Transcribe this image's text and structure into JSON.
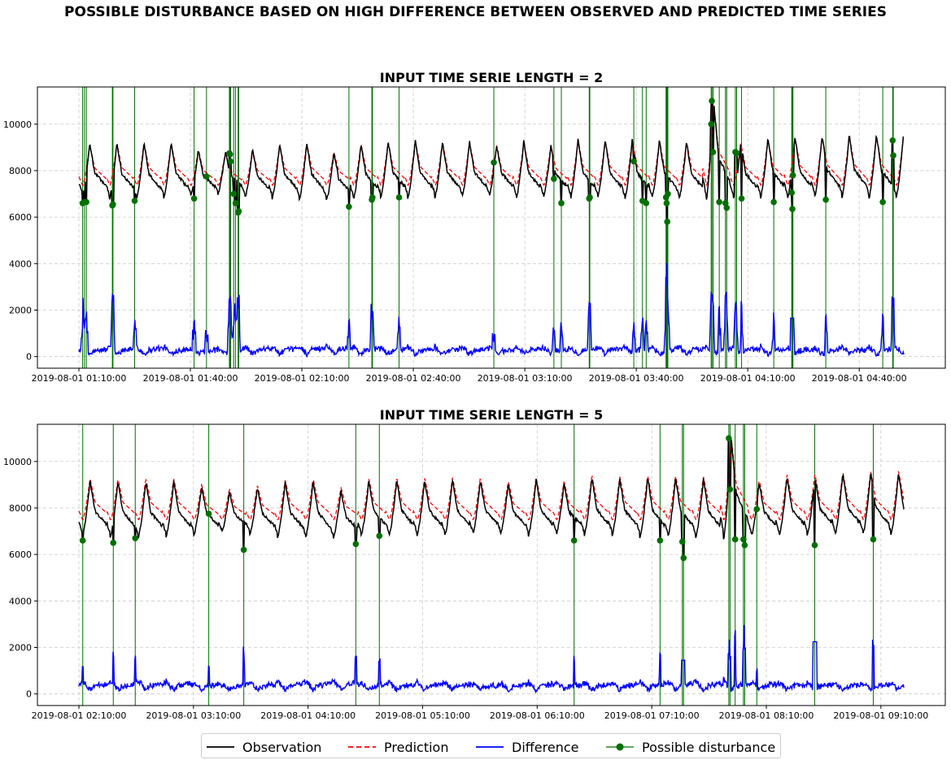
{
  "title": "POSSIBLE DISTURBANCE BASED ON HIGH DIFFERENCE BETWEEN OBSERVED AND PREDICTED TIME SERIES",
  "legend": {
    "observation": "Observation",
    "prediction": "Prediction",
    "difference": "Difference",
    "disturbance": "Possible disturbance"
  },
  "colors": {
    "observation": "#000000",
    "prediction": "#ff0000",
    "difference": "#0000ff",
    "disturbance": "#007000",
    "grid": "#cccccc"
  },
  "chart_data": [
    {
      "type": "line",
      "title": "INPUT TIME SERIE LENGTH = 2",
      "start_time": "2019-08-01 01:10:00",
      "end_time": "2019-08-01 04:52:00",
      "xticks": [
        "2019-08-01 01:10:00",
        "2019-08-01 01:40:00",
        "2019-08-01 02:10:00",
        "2019-08-01 02:40:00",
        "2019-08-01 03:10:00",
        "2019-08-01 03:40:00",
        "2019-08-01 04:10:00",
        "2019-08-01 04:40:00"
      ],
      "ylim": [
        -500,
        11600
      ],
      "yticks": [
        0,
        2000,
        4000,
        6000,
        8000,
        10000
      ],
      "grid": true,
      "cycle_minutes": 7.3,
      "observation_peaks": [
        9150,
        9200,
        9200,
        9200,
        8900,
        8800,
        8900,
        9150,
        9200,
        8800,
        9150,
        9250,
        9300,
        9250,
        9250,
        9100,
        9250,
        9100,
        9350,
        9300,
        9350,
        9300,
        9250,
        11000,
        9200,
        9400,
        9450,
        9500,
        9550,
        9550
      ],
      "observation_troughs": [
        6900,
        6800,
        6750,
        6800,
        6900,
        7000,
        6850,
        6800,
        6750,
        6700,
        6800,
        6850,
        6800,
        6850,
        6850,
        6900,
        6800,
        6850,
        6800,
        6800,
        6750,
        6800,
        6750,
        6650,
        6800,
        6800,
        6800,
        6850,
        6850,
        6800
      ],
      "disturbances": [
        {
          "t": "01:11:00",
          "v": 6600
        },
        {
          "t": "01:11:30",
          "v": 6650
        },
        {
          "t": "01:12:00",
          "v": 6650
        },
        {
          "t": "01:19:00",
          "v": 6500
        },
        {
          "t": "01:19:10",
          "v": 6550
        },
        {
          "t": "01:25:00",
          "v": 6700
        },
        {
          "t": "01:41:00",
          "v": 6800
        },
        {
          "t": "01:44:20",
          "v": 7750
        },
        {
          "t": "01:50:30",
          "v": 8750
        },
        {
          "t": "01:50:40",
          "v": 8700
        },
        {
          "t": "01:50:50",
          "v": 8400
        },
        {
          "t": "01:51:40",
          "v": 7000
        },
        {
          "t": "01:52:10",
          "v": 6600
        },
        {
          "t": "01:52:50",
          "v": 6200
        },
        {
          "t": "01:53:00",
          "v": 6250
        },
        {
          "t": "02:22:40",
          "v": 6450
        },
        {
          "t": "02:28:50",
          "v": 6750
        },
        {
          "t": "02:29:00",
          "v": 6850
        },
        {
          "t": "02:36:10",
          "v": 6850
        },
        {
          "t": "03:01:40",
          "v": 8350
        },
        {
          "t": "03:17:50",
          "v": 7650
        },
        {
          "t": "03:19:50",
          "v": 6600
        },
        {
          "t": "03:27:20",
          "v": 6800
        },
        {
          "t": "03:27:30",
          "v": 6850
        },
        {
          "t": "03:39:20",
          "v": 8400
        },
        {
          "t": "03:41:40",
          "v": 6700
        },
        {
          "t": "03:42:40",
          "v": 6600
        },
        {
          "t": "03:48:00",
          "v": 6850
        },
        {
          "t": "03:48:10",
          "v": 6600
        },
        {
          "t": "03:48:20",
          "v": 5800
        },
        {
          "t": "03:48:30",
          "v": 7000
        },
        {
          "t": "04:00:10",
          "v": 10000
        },
        {
          "t": "04:00:20",
          "v": 11000
        },
        {
          "t": "04:00:40",
          "v": 8800
        },
        {
          "t": "04:02:20",
          "v": 6650
        },
        {
          "t": "04:04:00",
          "v": 6600
        },
        {
          "t": "04:04:20",
          "v": 6400
        },
        {
          "t": "04:06:40",
          "v": 8800
        },
        {
          "t": "04:07:00",
          "v": 8750
        },
        {
          "t": "04:08:20",
          "v": 6800
        },
        {
          "t": "04:17:00",
          "v": 6650
        },
        {
          "t": "04:21:50",
          "v": 7050
        },
        {
          "t": "04:22:00",
          "v": 6350
        },
        {
          "t": "04:22:10",
          "v": 7800
        },
        {
          "t": "04:31:00",
          "v": 6750
        },
        {
          "t": "04:46:20",
          "v": 6650
        },
        {
          "t": "04:49:00",
          "v": 9300
        },
        {
          "t": "04:49:10",
          "v": 8650
        }
      ]
    },
    {
      "type": "line",
      "title": "INPUT TIME SERIE LENGTH = 5",
      "start_time": "2019-08-01 02:10:00",
      "end_time": "2019-08-01 09:22:00",
      "xticks": [
        "2019-08-01 02:10:00",
        "2019-08-01 03:10:00",
        "2019-08-01 04:10:00",
        "2019-08-01 05:10:00",
        "2019-08-01 06:10:00",
        "2019-08-01 07:10:00",
        "2019-08-01 08:10:00",
        "2019-08-01 09:10:00"
      ],
      "ylim": [
        -500,
        11600
      ],
      "yticks": [
        0,
        2000,
        4000,
        6000,
        8000,
        10000
      ],
      "grid": true,
      "cycle_minutes": 14.6,
      "observation_peaks": [
        9150,
        9150,
        9150,
        9150,
        8900,
        8700,
        8850,
        9100,
        9150,
        8750,
        9150,
        9200,
        9200,
        9200,
        9200,
        9050,
        9200,
        9050,
        9300,
        9250,
        9300,
        9300,
        9250,
        11000,
        9100,
        9350,
        9350,
        9450,
        9500,
        9500
      ],
      "observation_troughs": [
        6800,
        6750,
        6700,
        6750,
        6850,
        6950,
        6850,
        6750,
        6700,
        6700,
        6800,
        6800,
        6800,
        6800,
        6850,
        6850,
        6800,
        6850,
        6800,
        6800,
        6750,
        6750,
        6700,
        6650,
        6800,
        6800,
        6850,
        6850,
        6850,
        6800
      ],
      "disturbances": [
        {
          "t": "02:12:00",
          "v": 6600
        },
        {
          "t": "02:28:00",
          "v": 6500
        },
        {
          "t": "02:39:30",
          "v": 6700
        },
        {
          "t": "03:18:00",
          "v": 7750
        },
        {
          "t": "03:36:20",
          "v": 6200
        },
        {
          "t": "04:35:00",
          "v": 6450
        },
        {
          "t": "04:47:20",
          "v": 6800
        },
        {
          "t": "06:29:20",
          "v": 6600
        },
        {
          "t": "07:14:20",
          "v": 6600
        },
        {
          "t": "07:26:00",
          "v": 6550
        },
        {
          "t": "07:26:40",
          "v": 5850
        },
        {
          "t": "07:50:20",
          "v": 11000
        },
        {
          "t": "07:51:00",
          "v": 8800
        },
        {
          "t": "07:53:40",
          "v": 6650
        },
        {
          "t": "07:58:00",
          "v": 6650
        },
        {
          "t": "07:58:40",
          "v": 6400
        },
        {
          "t": "08:05:00",
          "v": 7950
        },
        {
          "t": "08:35:20",
          "v": 6400
        },
        {
          "t": "09:06:00",
          "v": 6650
        }
      ]
    }
  ]
}
